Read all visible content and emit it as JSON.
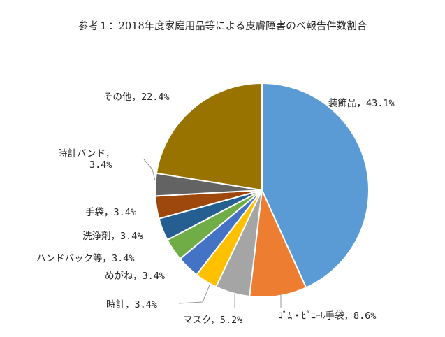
{
  "chart_data": {
    "type": "pie",
    "title": "参考１：2018年度家庭用品等による皮膚障害のべ報告件数割合",
    "slices": [
      {
        "label": "装飾品",
        "value": 43.1,
        "display": "装飾品，43.1%",
        "color": "#5b9bd5"
      },
      {
        "label": "ゴム・ビニール手袋",
        "value": 8.6,
        "display": "ｺﾞﾑ・ﾋﾞﾆｰﾙ手袋，8.6%",
        "color": "#ed7d31"
      },
      {
        "label": "マスク",
        "value": 5.2,
        "display": "マスク，5.2%",
        "color": "#a5a5a5"
      },
      {
        "label": "時計",
        "value": 3.4,
        "display": "時計，3.4%",
        "color": "#ffc000"
      },
      {
        "label": "めがね",
        "value": 3.4,
        "display": "めがね，3.4%",
        "color": "#4472c4"
      },
      {
        "label": "ハンドバック等",
        "value": 3.4,
        "display": "ハンドバック等，3.4%",
        "color": "#70ad47"
      },
      {
        "label": "洗浄剤",
        "value": 3.4,
        "display": "洗浄剤，3.4%",
        "color": "#255e91"
      },
      {
        "label": "手袋",
        "value": 3.4,
        "display": "手袋，3.4%",
        "color": "#9e480e"
      },
      {
        "label": "時計バンド",
        "value": 3.4,
        "display_line1": "時計バンド，",
        "display_line2": "3.4%",
        "color": "#636363"
      },
      {
        "label": "その他",
        "value": 22.4,
        "display": "その他，22.4%",
        "color": "#997300"
      }
    ],
    "legend": "none",
    "start": "top",
    "direction": "clockwise"
  }
}
